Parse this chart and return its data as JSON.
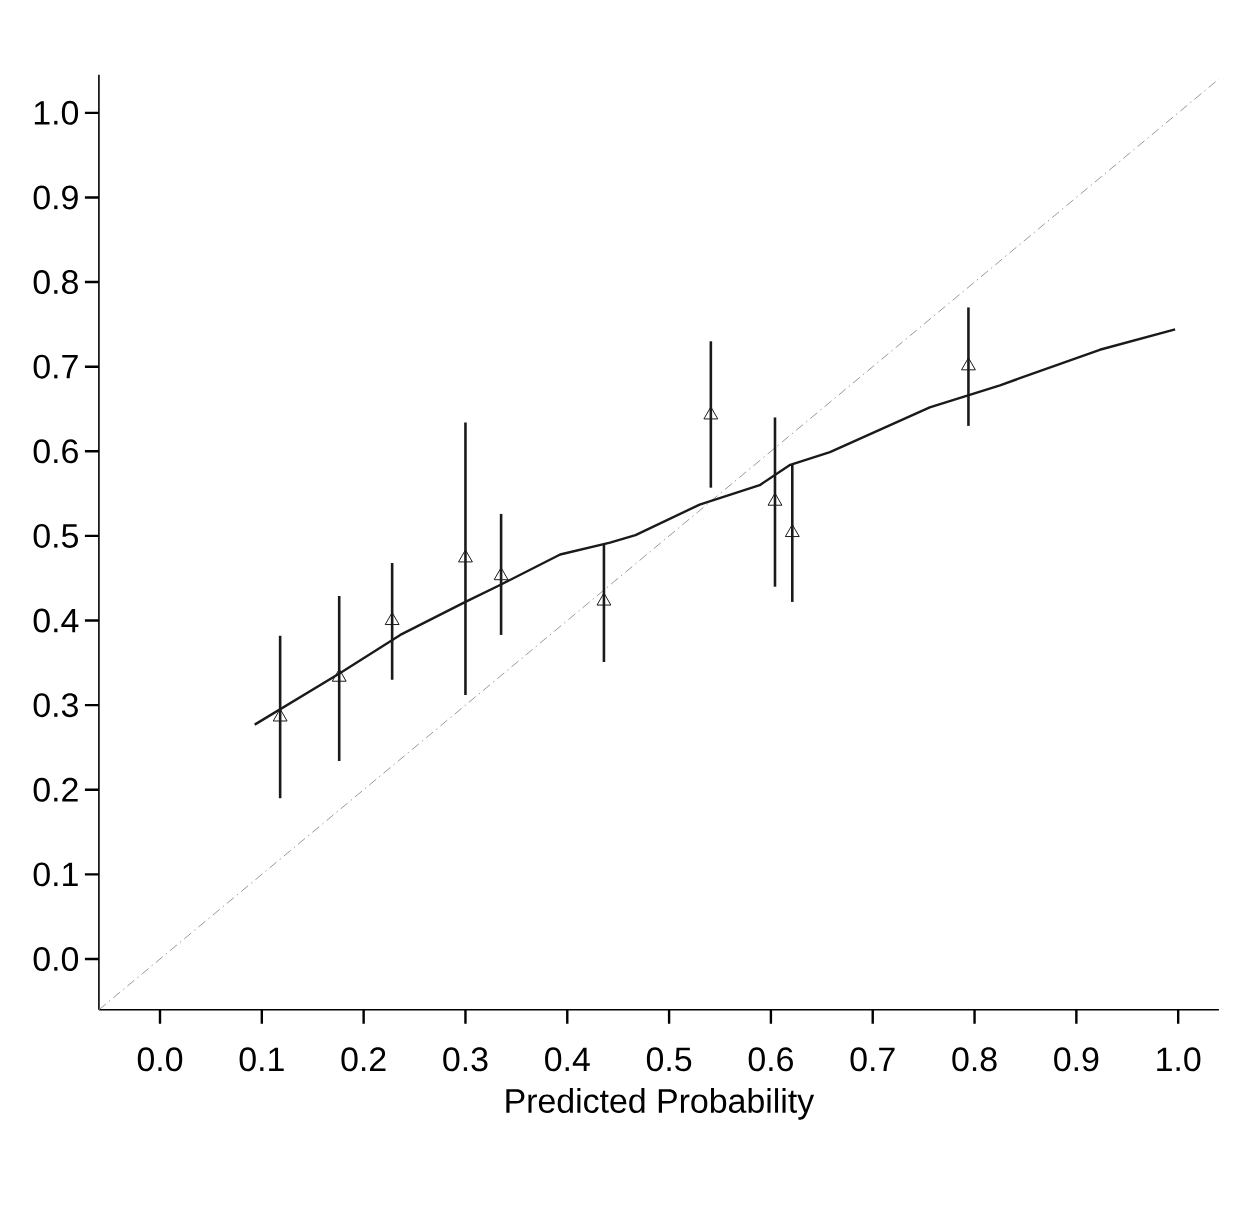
{
  "chart_data": {
    "type": "scatter",
    "xlabel": "Predicted Probability",
    "xlim": [
      -0.06,
      1.04
    ],
    "ylim": [
      -0.06,
      1.045
    ],
    "xticks": [
      {
        "value": 0,
        "label": "0.0"
      },
      0.1,
      0.2,
      0.3,
      0.4,
      0.5,
      0.6,
      0.7,
      0.8,
      0.9,
      {
        "value": 1,
        "label": "1.0"
      }
    ],
    "yticks": [
      {
        "value": 0,
        "label": "0.0"
      },
      0.1,
      0.2,
      0.3,
      0.4,
      0.5,
      0.6,
      0.7,
      0.8,
      0.9,
      {
        "value": 1,
        "label": "1.0"
      }
    ],
    "series": [
      {
        "type": "line",
        "color": "#999999",
        "line_style": "dashed",
        "marker": "none",
        "x": [
          -0.06,
          1.04
        ],
        "values": [
          -0.06,
          1.04
        ]
      },
      {
        "type": "line",
        "color": "#1a1a1a",
        "line_style": "solid",
        "marker": "none",
        "x": [
          0.093,
          0.177,
          0.236,
          0.3,
          0.334,
          0.393,
          0.442,
          0.467,
          0.53,
          0.589,
          0.619,
          0.658,
          0.756,
          0.825,
          0.923,
          0.997
        ],
        "values": [
          0.277,
          0.338,
          0.383,
          0.422,
          0.442,
          0.478,
          0.492,
          0.501,
          0.537,
          0.56,
          0.584,
          0.599,
          0.652,
          0.678,
          0.72,
          0.744
        ]
      },
      {
        "color": "#1a1a1a",
        "marker": "triangle",
        "x": [
          0.118,
          0.176,
          0.228,
          0.3,
          0.335,
          0.436,
          0.541,
          0.604,
          0.621,
          0.794
        ],
        "values": [
          0.286,
          0.333,
          0.4,
          0.474,
          0.453,
          0.423,
          0.643,
          0.541,
          0.504,
          0.701
        ],
        "errors": [
          [
            0.19,
            0.382
          ],
          [
            0.234,
            0.429
          ],
          [
            0.33,
            0.468
          ],
          [
            0.312,
            0.634
          ],
          [
            0.383,
            0.526
          ],
          [
            0.351,
            0.49
          ],
          [
            0.557,
            0.73
          ],
          [
            0.44,
            0.64
          ],
          [
            0.422,
            0.585
          ],
          [
            0.63,
            0.77
          ]
        ]
      }
    ]
  }
}
